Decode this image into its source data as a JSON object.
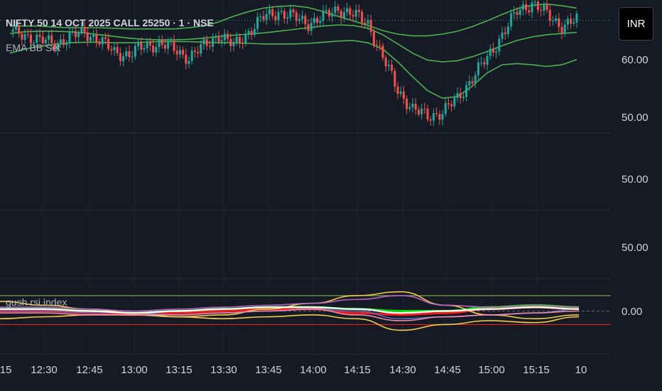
{
  "header": {
    "title": "NIFTY 50 14 OCT 2025 CALL 25250 · 1 · NSE",
    "indicator_1": "EMA BB Set",
    "indicator_2": "gush rsi index"
  },
  "currency_button": "INR",
  "price_scale_labels": [
    "60.00",
    "50.00",
    "50.00",
    "50.00",
    "0.00"
  ],
  "time_axis_labels": [
    ":15",
    "12:30",
    "12:45",
    "13:00",
    "13:15",
    "13:30",
    "13:45",
    "14:00",
    "14:15",
    "14:30",
    "14:45",
    "15:00",
    "15:15",
    "10"
  ],
  "colors": {
    "background": "#161a25",
    "up_candle": "#26a69a",
    "down_candle": "#ef5350",
    "bb_band": "#4caf50",
    "rsi_green": "#00e600",
    "rsi_red": "#ff1a1a",
    "rsi_yellow": "#ffd54f",
    "rsi_purple": "#ba68c8",
    "rsi_blue": "#5c6bc0",
    "rsi_white": "#ffffff",
    "rsi_pink": "#f48fb1"
  },
  "chart_data": [
    {
      "type": "candlestick",
      "title": "NIFTY 50 14 OCT 2025 CALL 25250 · 1 · NSE",
      "ylabel": "INR",
      "ylim": [
        46,
        69
      ],
      "x": [
        "12:15",
        "12:20",
        "12:25",
        "12:30",
        "12:35",
        "12:40",
        "12:45",
        "12:50",
        "12:55",
        "13:00",
        "13:05",
        "13:10",
        "13:15",
        "13:20",
        "13:25",
        "13:30",
        "13:35",
        "13:40",
        "13:45",
        "13:50",
        "13:55",
        "14:00",
        "14:05",
        "14:10",
        "14:15",
        "14:20",
        "14:25",
        "14:30",
        "14:35",
        "14:40",
        "14:45",
        "14:50",
        "14:55",
        "15:00",
        "15:05",
        "15:10",
        "15:15",
        "15:20",
        "15:25"
      ],
      "close": [
        63.5,
        63.0,
        62.0,
        61.5,
        62.5,
        63.5,
        62.0,
        60.0,
        59.5,
        61.0,
        61.5,
        60.5,
        59.0,
        61.0,
        63.0,
        61.0,
        63.5,
        66.0,
        67.0,
        66.0,
        65.0,
        66.0,
        67.5,
        66.5,
        65.0,
        59.0,
        53.5,
        50.0,
        49.0,
        49.5,
        52.0,
        55.5,
        59.0,
        63.0,
        67.0,
        68.5,
        66.5,
        64.5,
        65.5
      ],
      "series": [
        {
          "name": "EMA BB upper",
          "values": [
            64.5,
            64.5,
            64.5,
            64.3,
            64.2,
            64.2,
            64.2,
            64.1,
            64.0,
            64.0,
            64.0,
            64.0,
            64.2,
            64.5,
            65.2,
            66.2,
            67.0,
            67.6,
            67.9,
            68.0,
            67.7,
            67.0,
            66.2,
            65.4,
            64.6,
            63.7,
            63.1,
            62.8,
            62.8,
            63.1,
            63.6,
            64.4,
            65.4,
            66.5,
            67.5,
            68.1,
            68.3,
            68.0,
            67.6
          ]
        },
        {
          "name": "EMA BB middle",
          "values": [
            63.2,
            63.5,
            63.6,
            63.6,
            63.5,
            63.3,
            63.0,
            62.7,
            62.4,
            62.2,
            62.1,
            62.1,
            62.2,
            62.4,
            62.7,
            62.9,
            63.1,
            63.3,
            63.6,
            63.9,
            64.2,
            64.5,
            64.7,
            64.6,
            64.1,
            63.0,
            61.4,
            59.8,
            58.6,
            58.3,
            58.5,
            59.2,
            60.1,
            61.1,
            62.0,
            62.6,
            63.0,
            63.2,
            63.4
          ]
        },
        {
          "name": "EMA BB lower",
          "values": [
            59.8,
            60.5,
            61.0,
            61.3,
            61.6,
            61.7,
            61.7,
            61.6,
            61.6,
            61.7,
            61.8,
            61.8,
            61.8,
            61.7,
            61.6,
            61.6,
            61.5,
            61.4,
            61.4,
            61.4,
            61.5,
            61.7,
            61.9,
            62.0,
            61.6,
            60.5,
            58.3,
            55.7,
            53.3,
            52.0,
            52.3,
            54.1,
            56.4,
            57.8,
            58.0,
            57.8,
            57.5,
            57.8,
            58.7
          ]
        }
      ]
    },
    {
      "type": "line",
      "title": "gush rsi index",
      "x": [
        "12:15",
        "12:30",
        "12:45",
        "13:00",
        "13:15",
        "13:30",
        "13:45",
        "14:00",
        "14:15",
        "14:30",
        "14:45",
        "15:00",
        "15:15",
        "15:25"
      ],
      "series": [
        {
          "name": "",
          "color": "#00e600",
          "values": [
            1,
            1,
            0,
            -1,
            0,
            1,
            2,
            2,
            1,
            0,
            0,
            2,
            3,
            2
          ]
        },
        {
          "name": "",
          "color": "#ff1a1a",
          "values": [
            0,
            0,
            -1,
            -2,
            -1,
            0,
            1,
            1,
            -1,
            -2,
            -1,
            1,
            2,
            1
          ]
        },
        {
          "name": "",
          "color": "#ffd54f",
          "values": [
            5,
            3,
            1,
            -1,
            -3,
            -2,
            1,
            4,
            8,
            10,
            3,
            -2,
            -4,
            -2
          ]
        },
        {
          "name": "",
          "color": "#ffd54f",
          "values": [
            -4,
            -3,
            -2,
            -2,
            -3,
            -4,
            -3,
            -2,
            -4,
            -10,
            -7,
            -5,
            -6,
            -3
          ]
        },
        {
          "name": "",
          "color": "#ba68c8",
          "values": [
            2,
            2,
            1,
            0,
            1,
            2,
            3,
            4,
            6,
            8,
            3,
            2,
            3,
            2
          ]
        },
        {
          "name": "",
          "color": "#5c6bc0",
          "values": [
            0,
            0,
            -1,
            -1,
            -2,
            -1,
            0,
            1,
            0,
            -4,
            -3,
            -2,
            -1,
            1
          ]
        },
        {
          "name": "",
          "color": "#ffffff",
          "values": [
            1,
            1,
            0,
            -1,
            0,
            1,
            2,
            2,
            1,
            -1,
            0,
            1,
            2,
            1
          ]
        },
        {
          "name": "",
          "color": "#f48fb1",
          "values": [
            -1,
            -1,
            -2,
            -2,
            -2,
            -1,
            0,
            1,
            -2,
            -5,
            -3,
            -2,
            -1,
            0
          ]
        }
      ],
      "hlines": [
        8,
        0,
        -7
      ]
    }
  ]
}
